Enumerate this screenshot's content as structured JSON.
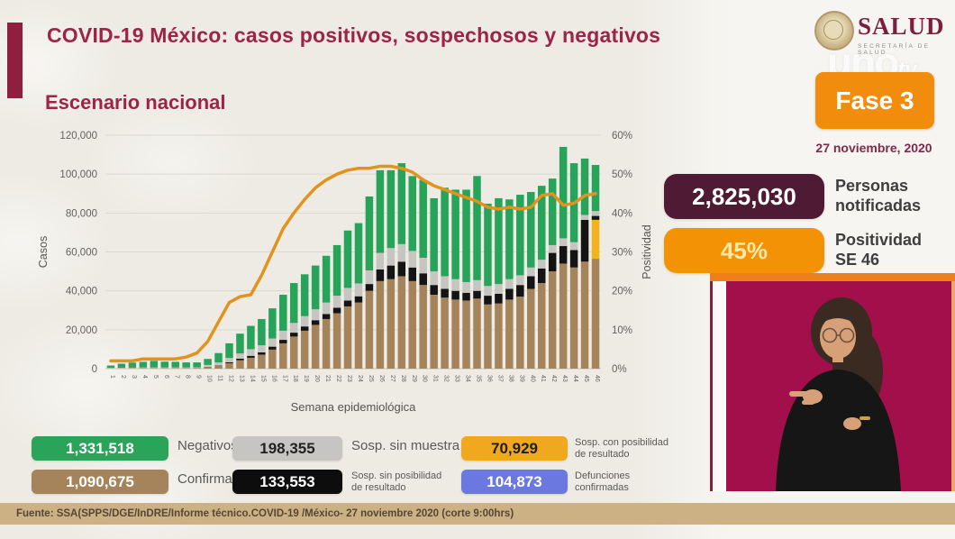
{
  "header": {
    "title": "COVID-19 México: casos positivos, sospechosos y negativos",
    "subtitle": "Escenario nacional",
    "accent_color": "#9d2449"
  },
  "branding": {
    "salud_label": "SALUD",
    "salud_sub": "SECRETARÍA DE SALUD",
    "watermark_main": "uno",
    "watermark_sub": "tv"
  },
  "phase": {
    "label": "Fase 3",
    "date": "27 noviembre, 2020",
    "color": "#f28c0c"
  },
  "stats": [
    {
      "value": "2,825,030",
      "label_lines": [
        "Personas",
        "notificadas"
      ],
      "color": "#4f1a33",
      "text_color": "#ffffff"
    },
    {
      "value": "45%",
      "label_lines": [
        "Positividad",
        "SE 46"
      ],
      "color": "#f29204",
      "text_color": "#ffe9a8"
    }
  ],
  "chart_data": {
    "type": "bar",
    "title": "Escenario nacional",
    "xlabel": "Semana epidemiológica",
    "ylabel": "Casos",
    "y2label": "Positividad",
    "stacked": true,
    "grid": true,
    "ylim": [
      0,
      120000
    ],
    "y2lim": [
      0,
      60
    ],
    "left_axis": {
      "label": "Casos",
      "tick_values": [
        0,
        20000,
        40000,
        60000,
        80000,
        100000,
        120000
      ],
      "tick_labels": [
        "0",
        "20,000",
        "40,000",
        "60,000",
        "80,000",
        "100,000",
        "120,000"
      ]
    },
    "right_axis": {
      "label": "Positividad",
      "tick_values": [
        0,
        10,
        20,
        30,
        40,
        50,
        60
      ],
      "tick_labels": [
        "0%",
        "10%",
        "20%",
        "30%",
        "40%",
        "50%",
        "60%"
      ]
    },
    "categories": [
      "1",
      "2",
      "3",
      "4",
      "5",
      "6",
      "7",
      "8",
      "9",
      "10",
      "11",
      "12",
      "13",
      "14",
      "15",
      "16",
      "17",
      "18",
      "19",
      "20",
      "21",
      "22",
      "23",
      "24",
      "25",
      "26",
      "27",
      "28",
      "29",
      "30",
      "31",
      "32",
      "33",
      "34",
      "35",
      "36",
      "37",
      "38",
      "39",
      "40",
      "41",
      "42",
      "43",
      "44",
      "45",
      "46"
    ],
    "series": [
      {
        "name": "Confirmados",
        "color": "#a5845c",
        "values": [
          100,
          150,
          200,
          300,
          300,
          300,
          300,
          300,
          400,
          800,
          1500,
          2800,
          4300,
          5600,
          7200,
          9800,
          13000,
          16500,
          19500,
          22500,
          25500,
          28500,
          32000,
          34000,
          40000,
          45000,
          46000,
          47500,
          45000,
          43000,
          38000,
          36500,
          35500,
          35000,
          36000,
          33000,
          33500,
          35500,
          37000,
          41000,
          44000,
          50000,
          54000,
          52000,
          55000,
          56500
        ]
      },
      {
        "name": "Sosp. con posibilidad de resultado",
        "color": "#f5b31b",
        "values": [
          0,
          0,
          0,
          0,
          0,
          0,
          0,
          0,
          0,
          0,
          0,
          0,
          0,
          0,
          0,
          0,
          0,
          0,
          0,
          0,
          0,
          0,
          0,
          0,
          0,
          0,
          0,
          0,
          0,
          0,
          0,
          0,
          0,
          0,
          0,
          0,
          0,
          0,
          0,
          0,
          0,
          0,
          0,
          0,
          0,
          20000
        ]
      },
      {
        "name": "Sosp. sin posibilidad de resultado",
        "color": "#141414",
        "values": [
          0,
          0,
          0,
          0,
          0,
          0,
          0,
          0,
          0,
          100,
          200,
          500,
          800,
          1000,
          1200,
          1500,
          1800,
          2000,
          2200,
          2400,
          2600,
          2800,
          3000,
          3200,
          3500,
          6000,
          7000,
          7500,
          7000,
          6000,
          5000,
          4500,
          4500,
          4000,
          4000,
          4500,
          5000,
          5500,
          6000,
          6500,
          7500,
          9500,
          9000,
          9000,
          21500,
          2000
        ]
      },
      {
        "name": "Sosp. sin muestra",
        "color": "#c6c5c1",
        "values": [
          300,
          300,
          300,
          300,
          300,
          300,
          300,
          300,
          300,
          1000,
          1500,
          2200,
          2700,
          3400,
          3600,
          4200,
          4700,
          5000,
          5300,
          5600,
          5900,
          6200,
          6500,
          6600,
          7000,
          8500,
          9000,
          9000,
          8500,
          8000,
          7000,
          6500,
          6000,
          5500,
          5500,
          5000,
          5000,
          5000,
          5000,
          4500,
          4500,
          4000,
          4000,
          4000,
          2500,
          2500
        ]
      },
      {
        "name": "Negativos",
        "color": "#27a35a",
        "values": [
          1200,
          2100,
          2600,
          2900,
          3400,
          3000,
          2900,
          2600,
          2500,
          3100,
          4800,
          7500,
          10200,
          12000,
          13500,
          15500,
          18500,
          20500,
          21500,
          22500,
          24000,
          26000,
          29500,
          31000,
          38000,
          42500,
          40000,
          41600,
          38500,
          40000,
          37600,
          45500,
          46000,
          47500,
          53500,
          42300,
          44100,
          41000,
          41400,
          38800,
          38000,
          34200,
          47000,
          40600,
          29000,
          23700
        ]
      }
    ],
    "line_series": {
      "name": "Positividad",
      "color": "#e2931e",
      "axis": "right",
      "values": [
        2,
        2,
        2,
        2.5,
        2.5,
        2.5,
        2.5,
        3,
        4,
        7,
        12,
        17,
        18.5,
        19,
        24,
        30,
        36,
        40,
        43.5,
        46.5,
        48.5,
        50,
        51,
        51.5,
        51.5,
        52,
        52,
        51.5,
        50.5,
        48.5,
        47,
        46,
        45,
        44,
        43,
        41.5,
        41,
        41.5,
        41,
        41.5,
        44.5,
        45,
        42,
        42.5,
        44.5,
        45
      ]
    }
  },
  "legend": [
    {
      "value": "1,331,518",
      "label_lines": [
        "Negativos"
      ],
      "color": "#2aa458",
      "text_color": "#ffffff"
    },
    {
      "value": "198,355",
      "label_lines": [
        "Sosp. sin muestra"
      ],
      "color": "#c6c5c1",
      "text_color": "#222222"
    },
    {
      "value": "70,929",
      "label_lines": [
        "Sosp. con posibilidad",
        "de resultado"
      ],
      "color": "#f0a81f",
      "text_color": "#202020"
    },
    {
      "value": "1,090,675",
      "label_lines": [
        "Confirmados"
      ],
      "color": "#a5845c",
      "text_color": "#ffffff"
    },
    {
      "value": "133,553",
      "label_lines": [
        "Sosp. sin posibilidad",
        "de resultado"
      ],
      "color": "#0d0d0d",
      "text_color": "#ffffff"
    },
    {
      "value": "104,873",
      "label_lines": [
        "Defunciones",
        "confirmadas"
      ],
      "color": "#6b78e0",
      "text_color": "#ffffff"
    }
  ],
  "footer": {
    "source": "Fuente: SSA(SPPS/DGE/InDRE/Informe técnico.COVID-19 /México- 27 noviembre 2020 (corte 9:00hrs)"
  }
}
